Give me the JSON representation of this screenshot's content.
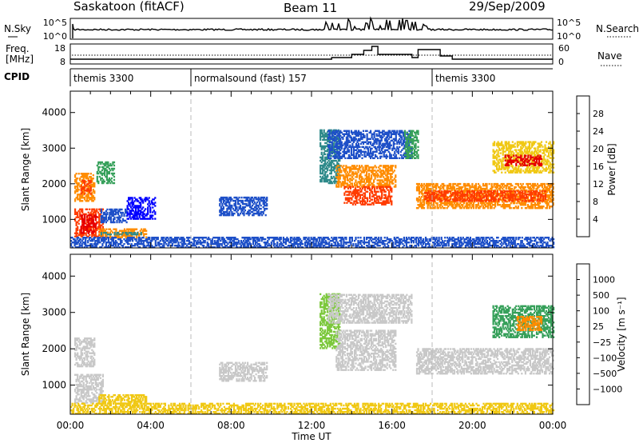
{
  "header": {
    "station": "Saskatoon (fitACF)",
    "beam": "Beam 11",
    "date": "29/Sep/2009"
  },
  "nsky_panel": {
    "left_label": "N.Sky",
    "left_ticks": [
      "10^5",
      "10^0"
    ],
    "right_ticks": [
      "10^5",
      "10^0"
    ],
    "right_label": "N.Search"
  },
  "freq_panel": {
    "left_label_1": "Freq.",
    "left_label_2": "[MHz]",
    "left_ticks": [
      "18",
      "8"
    ],
    "right_ticks": [
      "60",
      "0"
    ],
    "right_label": "Nave"
  },
  "cpid_panel": {
    "label": "CPID",
    "segments": [
      {
        "name": "themis 3300",
        "start_hour": 0,
        "end_hour": 6
      },
      {
        "name": "normalsound (fast) 157",
        "start_hour": 6,
        "end_hour": 18
      },
      {
        "name": "themis 3300",
        "start_hour": 18,
        "end_hour": 24
      }
    ]
  },
  "chart_data": [
    {
      "type": "heatmap",
      "name": "power",
      "ylabel": "Slant Range [km]",
      "xlabel": "",
      "ylim": [
        200,
        4600
      ],
      "xlim": [
        0,
        24
      ],
      "yticks": [
        "1000",
        "2000",
        "3000",
        "4000"
      ],
      "colorbar": {
        "label": "Power [dB]",
        "ticks": [
          "4",
          "8",
          "12",
          "16",
          "20",
          "24",
          "28"
        ],
        "colors": [
          "#0000ff",
          "#1e50c8",
          "#2f8a8a",
          "#36a05a",
          "#7cc83c",
          "#f0c814",
          "#ff8c00",
          "#ff3c00",
          "#e60000"
        ]
      },
      "regions": [
        {
          "t0": 0.2,
          "t1": 1.6,
          "r0": 500,
          "r1": 1300,
          "color": "#ff3c00"
        },
        {
          "t0": 0.5,
          "t1": 1.3,
          "r0": 600,
          "r1": 1100,
          "color": "#e60000"
        },
        {
          "t0": 1.4,
          "t1": 3.8,
          "r0": 480,
          "r1": 720,
          "color": "#ff8c00"
        },
        {
          "t0": 1.5,
          "t1": 3.5,
          "r0": 560,
          "r1": 650,
          "color": "#2f8a8a"
        },
        {
          "t0": 0.2,
          "t1": 1.2,
          "r0": 1500,
          "r1": 2300,
          "color": "#ff8c00"
        },
        {
          "t0": 0.5,
          "t1": 1.0,
          "r0": 1700,
          "r1": 2100,
          "color": "#ff3c00"
        },
        {
          "t0": 1.3,
          "t1": 2.2,
          "r0": 2000,
          "r1": 2600,
          "color": "#36a05a"
        },
        {
          "t0": 1.5,
          "t1": 2.8,
          "r0": 900,
          "r1": 1300,
          "color": "#1e50c8"
        },
        {
          "t0": 2.8,
          "t1": 4.2,
          "r0": 1000,
          "r1": 1600,
          "color": "#0000ff"
        },
        {
          "t0": 7.4,
          "t1": 9.8,
          "r0": 1100,
          "r1": 1600,
          "color": "#1e50c8"
        },
        {
          "t0": 12.4,
          "t1": 13.4,
          "r0": 2000,
          "r1": 3500,
          "color": "#2f8a8a"
        },
        {
          "t0": 13.2,
          "t1": 16.2,
          "r0": 1900,
          "r1": 2500,
          "color": "#ff8c00"
        },
        {
          "t0": 13.6,
          "t1": 16.0,
          "r0": 1400,
          "r1": 1900,
          "color": "#ff3c00"
        },
        {
          "t0": 12.8,
          "t1": 17.0,
          "r0": 2700,
          "r1": 3500,
          "color": "#1e50c8"
        },
        {
          "t0": 16.6,
          "t1": 17.3,
          "r0": 2700,
          "r1": 3500,
          "color": "#36a05a"
        },
        {
          "t0": 17.2,
          "t1": 24.0,
          "r0": 1300,
          "r1": 2000,
          "color": "#ff8c00"
        },
        {
          "t0": 17.6,
          "t1": 23.6,
          "r0": 1500,
          "r1": 1800,
          "color": "#ff3c00"
        },
        {
          "t0": 21.0,
          "t1": 24.0,
          "r0": 2300,
          "r1": 3200,
          "color": "#f0c814"
        },
        {
          "t0": 21.6,
          "t1": 23.4,
          "r0": 2500,
          "r1": 2800,
          "color": "#e60000"
        },
        {
          "t0": 0.0,
          "t1": 24.0,
          "r0": 200,
          "r1": 500,
          "color": "#1e50c8"
        }
      ]
    },
    {
      "type": "heatmap",
      "name": "velocity",
      "ylabel": "Slant Range [km]",
      "xlabel": "Time UT",
      "ylim": [
        200,
        4600
      ],
      "xlim": [
        0,
        24
      ],
      "yticks": [
        "1000",
        "2000",
        "3000",
        "4000"
      ],
      "xticks": [
        "00:00",
        "04:00",
        "08:00",
        "12:00",
        "16:00",
        "20:00",
        "00:00"
      ],
      "colorbar": {
        "label": "Velocity [m s⁻¹]",
        "ticks": [
          "1000",
          "500",
          "100",
          "25",
          "−25",
          "−100",
          "−500",
          "−1000"
        ],
        "colors": [
          "#0000ff",
          "#1e50c8",
          "#2f8a8a",
          "#36a05a",
          "#7cc83c",
          "#c8c8c8",
          "#c8c8c8",
          "#f0c814",
          "#ff8c00",
          "#ff3c00",
          "#e60000"
        ]
      },
      "regions": [
        {
          "t0": 0.2,
          "t1": 1.6,
          "r0": 500,
          "r1": 1300,
          "color": "#c8c8c8"
        },
        {
          "t0": 1.4,
          "t1": 3.8,
          "r0": 480,
          "r1": 720,
          "color": "#f0c814"
        },
        {
          "t0": 0.2,
          "t1": 1.2,
          "r0": 1500,
          "r1": 2300,
          "color": "#c8c8c8"
        },
        {
          "t0": 7.4,
          "t1": 9.8,
          "r0": 1100,
          "r1": 1600,
          "color": "#c8c8c8"
        },
        {
          "t0": 12.4,
          "t1": 13.4,
          "r0": 2000,
          "r1": 3500,
          "color": "#7cc83c"
        },
        {
          "t0": 13.2,
          "t1": 16.2,
          "r0": 1400,
          "r1": 2500,
          "color": "#c8c8c8"
        },
        {
          "t0": 12.8,
          "t1": 17.0,
          "r0": 2700,
          "r1": 3500,
          "color": "#c8c8c8"
        },
        {
          "t0": 17.2,
          "t1": 24.0,
          "r0": 1300,
          "r1": 2000,
          "color": "#c8c8c8"
        },
        {
          "t0": 21.0,
          "t1": 24.0,
          "r0": 2300,
          "r1": 3200,
          "color": "#36a05a"
        },
        {
          "t0": 22.2,
          "t1": 23.4,
          "r0": 2500,
          "r1": 2900,
          "color": "#ff8c00"
        },
        {
          "t0": 0.0,
          "t1": 24.0,
          "r0": 200,
          "r1": 500,
          "color": "#f0c814"
        }
      ]
    }
  ]
}
